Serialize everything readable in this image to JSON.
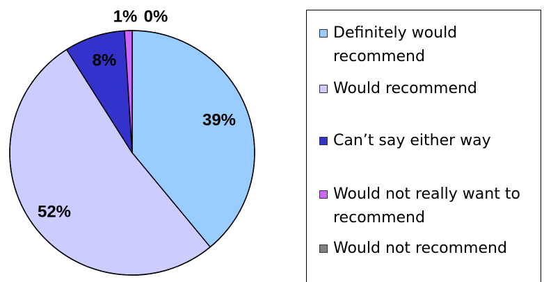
{
  "chart_data": {
    "type": "pie",
    "title": "",
    "slices": [
      {
        "label": "Definitely would recommend",
        "value": 39,
        "value_label": "39%",
        "color": "#99ccff"
      },
      {
        "label": "Would recommend",
        "value": 52,
        "value_label": "52%",
        "color": "#ccccff"
      },
      {
        "label": "Can’t say either way",
        "value": 8,
        "value_label": "8%",
        "color": "#3333cc"
      },
      {
        "label": "Would not really want to recommend",
        "value": 1,
        "value_label": "1%",
        "color": "#cc66ff"
      },
      {
        "label": "Would not recommend",
        "value": 0,
        "value_label": "0%",
        "color": "#808080"
      }
    ],
    "legend_position": "right"
  }
}
